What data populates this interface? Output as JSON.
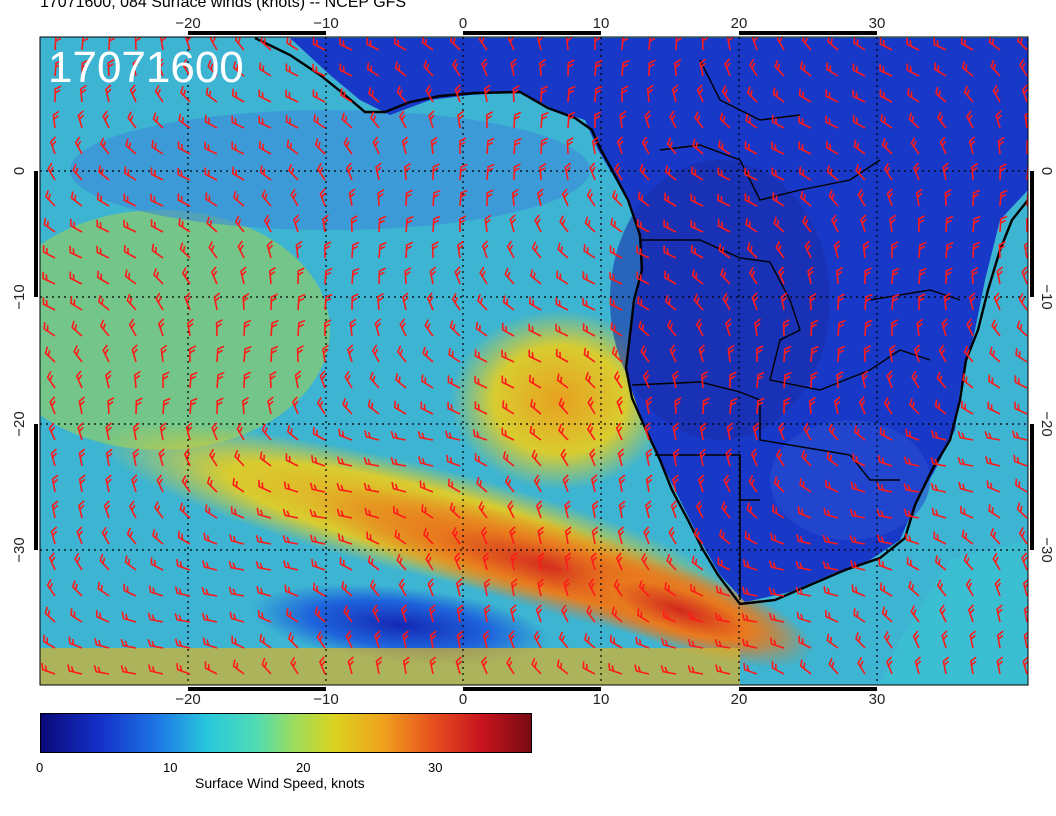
{
  "header": {
    "title": "17071600, 084 Surface winds (knots) -- NCEP GFS"
  },
  "map": {
    "stamp": "17071600",
    "lon_ticks": [
      "−20",
      "−10",
      "0",
      "10",
      "20",
      "30"
    ],
    "lat_ticks": [
      "0",
      "−10",
      "−20",
      "−30"
    ],
    "colors": {
      "barb": "#ff1a1a",
      "coast": "#000000",
      "grid": "#000000"
    }
  },
  "colorbar": {
    "label": "Surface Wind Speed, knots",
    "ticks": [
      "0",
      "10",
      "20",
      "30"
    ],
    "range": [
      0,
      37
    ]
  }
}
